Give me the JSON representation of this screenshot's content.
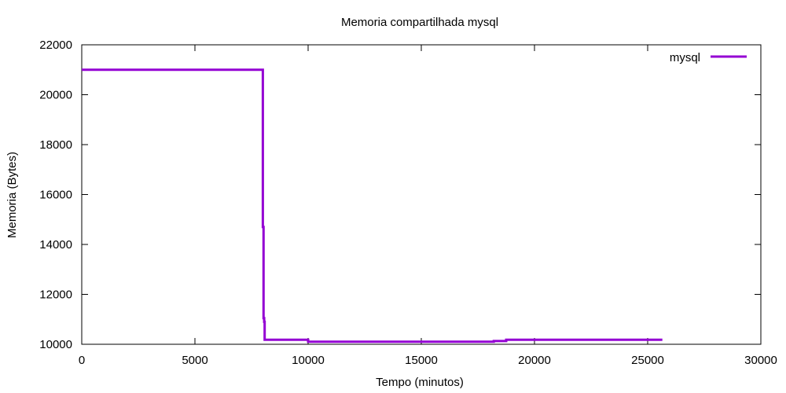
{
  "chart_data": {
    "type": "line",
    "title": "Memoria compartilhada mysql",
    "xlabel": "Tempo (minutos)",
    "ylabel": "Memoria (Bytes)",
    "xlim": [
      0,
      30000
    ],
    "ylim": [
      10000,
      22000
    ],
    "x_ticks": [
      0,
      5000,
      10000,
      15000,
      20000,
      25000,
      30000
    ],
    "y_ticks": [
      10000,
      12000,
      14000,
      16000,
      18000,
      20000,
      22000
    ],
    "grid": false,
    "legend_position": "top-right",
    "series": [
      {
        "name": "mysql",
        "color": "#9400d3",
        "x": [
          0,
          8000,
          8000,
          8030,
          8030,
          8060,
          8060,
          8080,
          8080,
          10000,
          10000,
          18200,
          18200,
          18750,
          18750,
          25650
        ],
        "y": [
          21000,
          21000,
          14700,
          14700,
          11050,
          11050,
          10900,
          10900,
          10180,
          10180,
          10100,
          10100,
          10130,
          10130,
          10180,
          10180
        ]
      }
    ]
  }
}
